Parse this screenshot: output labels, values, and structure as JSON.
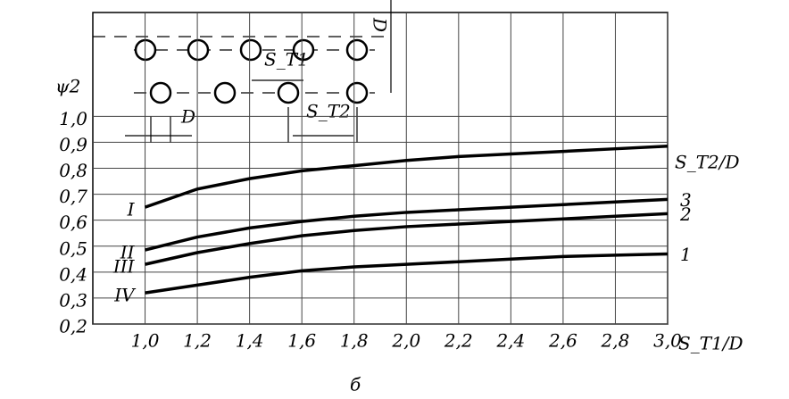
{
  "chart_data": {
    "type": "line",
    "y_label": "ψ2",
    "x_label": "S_T1/D",
    "caption": "б",
    "legend_title": "S_T2/D",
    "annotations": [
      "D",
      "S_T1",
      "S_T2",
      "D"
    ],
    "x": [
      1.0,
      1.2,
      1.4,
      1.6,
      1.8,
      2.0,
      2.2,
      2.4,
      2.6,
      2.8,
      3.0
    ],
    "series": [
      {
        "name": "I",
        "color": "#000000",
        "values": [
          0.65,
          0.72,
          0.76,
          0.79,
          0.81,
          0.83,
          0.845,
          0.855,
          0.865,
          0.875,
          0.885
        ]
      },
      {
        "name": "II",
        "end_label": "3",
        "color": "#000000",
        "values": [
          0.485,
          0.535,
          0.57,
          0.595,
          0.615,
          0.63,
          0.64,
          0.65,
          0.66,
          0.67,
          0.68
        ]
      },
      {
        "name": "III",
        "end_label": "2",
        "color": "#000000",
        "values": [
          0.43,
          0.475,
          0.51,
          0.54,
          0.56,
          0.575,
          0.585,
          0.595,
          0.605,
          0.615,
          0.625
        ]
      },
      {
        "name": "IV",
        "end_label": "1",
        "color": "#000000",
        "values": [
          0.32,
          0.35,
          0.38,
          0.405,
          0.42,
          0.43,
          0.44,
          0.45,
          0.46,
          0.465,
          0.47
        ]
      }
    ],
    "xlim": [
      0.8,
      3.0
    ],
    "ylim": [
      0.2,
      1.4
    ],
    "xticks": [
      {
        "value": 1.0,
        "label": "1,0"
      },
      {
        "value": 1.2,
        "label": "1,2"
      },
      {
        "value": 1.4,
        "label": "1,4"
      },
      {
        "value": 1.6,
        "label": "1,6"
      },
      {
        "value": 1.8,
        "label": "1,8"
      },
      {
        "value": 2.0,
        "label": "2,0"
      },
      {
        "value": 2.2,
        "label": "2,2"
      },
      {
        "value": 2.4,
        "label": "2,4"
      },
      {
        "value": 2.6,
        "label": "2,6"
      },
      {
        "value": 2.8,
        "label": "2,8"
      },
      {
        "value": 3.0,
        "label": "3,0"
      }
    ],
    "yticks": [
      {
        "value": 0.2,
        "label": "0,2"
      },
      {
        "value": 0.3,
        "label": "0,3"
      },
      {
        "value": 0.4,
        "label": "0,4"
      },
      {
        "value": 0.5,
        "label": "0,5"
      },
      {
        "value": 0.6,
        "label": "0,6"
      },
      {
        "value": 0.7,
        "label": "0,7"
      },
      {
        "value": 0.8,
        "label": "0,8"
      },
      {
        "value": 0.9,
        "label": "0,9"
      },
      {
        "value": 1.0,
        "label": "1,0"
      }
    ],
    "grid": true
  }
}
